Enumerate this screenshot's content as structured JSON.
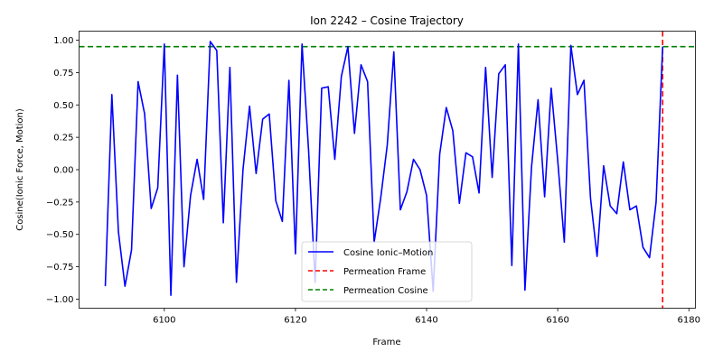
{
  "chart_data": {
    "type": "line",
    "title": "Ion 2242 – Cosine Trajectory",
    "xlabel": "Frame",
    "ylabel": "Cosine(Ionic Force, Motion)",
    "xlim": [
      6087,
      6181
    ],
    "ylim": [
      -1.07,
      1.07
    ],
    "xticks": [
      6100,
      6120,
      6140,
      6160,
      6180
    ],
    "yticks": [
      -1.0,
      -0.75,
      -0.5,
      -0.25,
      0.0,
      0.25,
      0.5,
      0.75,
      1.0
    ],
    "xtick_labels": [
      "6100",
      "6120",
      "6140",
      "6160",
      "6180"
    ],
    "ytick_labels": [
      "−1.00",
      "−0.75",
      "−0.50",
      "−0.25",
      "0.00",
      "0.25",
      "0.50",
      "0.75",
      "1.00"
    ],
    "grid": false,
    "legend_position": "lower-center",
    "series": [
      {
        "name": "Cosine Ionic–Motion",
        "color": "#0000ff",
        "style": "solid",
        "x": [
          6091,
          6092,
          6093,
          6094,
          6095,
          6096,
          6097,
          6098,
          6099,
          6100,
          6101,
          6102,
          6103,
          6104,
          6105,
          6106,
          6107,
          6108,
          6109,
          6110,
          6111,
          6112,
          6113,
          6114,
          6115,
          6116,
          6117,
          6118,
          6119,
          6120,
          6121,
          6122,
          6123,
          6124,
          6125,
          6126,
          6127,
          6128,
          6129,
          6130,
          6131,
          6132,
          6133,
          6134,
          6135,
          6136,
          6137,
          6138,
          6139,
          6140,
          6141,
          6142,
          6143,
          6144,
          6145,
          6146,
          6147,
          6148,
          6149,
          6150,
          6151,
          6152,
          6153,
          6154,
          6155,
          6156,
          6157,
          6158,
          6159,
          6160,
          6161,
          6162,
          6163,
          6164,
          6165,
          6166,
          6167,
          6168,
          6169,
          6170,
          6171,
          6172,
          6173,
          6174,
          6175,
          6176
        ],
        "y": [
          -0.9,
          0.58,
          -0.48,
          -0.9,
          -0.62,
          0.68,
          0.43,
          -0.3,
          -0.14,
          0.97,
          -0.97,
          0.73,
          -0.75,
          -0.2,
          0.08,
          -0.23,
          0.99,
          0.92,
          -0.41,
          0.79,
          -0.87,
          0.0,
          0.49,
          -0.03,
          0.39,
          0.43,
          -0.24,
          -0.4,
          0.69,
          -0.65,
          0.97,
          0.15,
          -0.87,
          0.63,
          0.64,
          0.08,
          0.72,
          0.95,
          0.28,
          0.81,
          0.68,
          -0.56,
          -0.22,
          0.19,
          0.91,
          -0.31,
          -0.17,
          0.08,
          0.0,
          -0.2,
          -0.94,
          0.12,
          0.48,
          0.3,
          -0.26,
          0.13,
          0.1,
          -0.18,
          0.79,
          -0.06,
          0.74,
          0.81,
          -0.74,
          0.97,
          -0.93,
          0.02,
          0.54,
          -0.21,
          0.63,
          0.07,
          -0.56,
          0.96,
          0.58,
          0.69,
          -0.22,
          -0.67,
          0.03,
          -0.28,
          -0.34,
          0.06,
          -0.31,
          -0.28,
          -0.6,
          -0.68,
          -0.25,
          0.95
        ]
      }
    ],
    "reference_lines": [
      {
        "name": "Permeation Frame",
        "orientation": "vertical",
        "value": 6176,
        "color": "#ff0000",
        "style": "dashed"
      },
      {
        "name": "Permeation Cosine",
        "orientation": "horizontal",
        "value": 0.95,
        "color": "#008000",
        "style": "dashed"
      }
    ]
  }
}
